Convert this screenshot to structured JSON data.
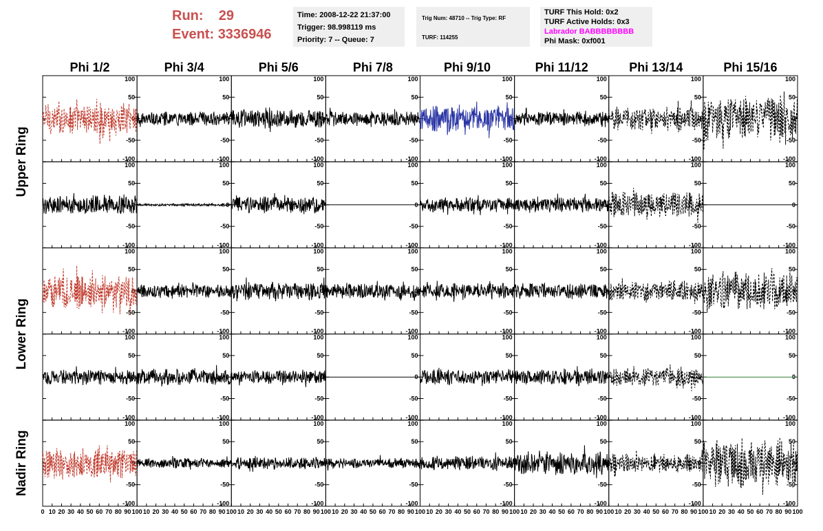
{
  "header": {
    "run_label": "Run:",
    "run_value": "29",
    "event_label": "Event:",
    "event_value": "3336946",
    "time": "Time: 2008-12-22 21:37:00",
    "trigger": "Trigger: 98.998119 ms",
    "priority_queue": "Priority: 7 -- Queue: 7",
    "trig_num_type": "Trig Num: 48710 -- Trig Type: RF",
    "turf_num": "TURF: 114255",
    "turf_this_hold": "TURF This Hold: 0x2",
    "turf_active_holds": "TURF Active Holds: 0x3",
    "labrador": "Labrador BABBBBBBBB",
    "phi_mask": "Phi Mask: 0xf001"
  },
  "colors": {
    "title_red": "#c8504f",
    "labrador_magenta": "#ff00ff",
    "trace_red": "#c0392b",
    "trace_blue": "#2a35a5",
    "trace_green": "#2e7d32",
    "trace_black": "#000000",
    "info_bg": "#efefef"
  },
  "chart_data": {
    "type": "line",
    "columns": [
      "Phi 1/2",
      "Phi 3/4",
      "Phi 5/6",
      "Phi 7/8",
      "Phi 9/10",
      "Phi 11/12",
      "Phi 13/14",
      "Phi 15/16"
    ],
    "ring_labels": [
      "Upper Ring",
      "Lower Ring",
      "Nadir Ring"
    ],
    "rows": 5,
    "row_ring": [
      0,
      0,
      1,
      1,
      2
    ],
    "xlim": [
      0,
      100
    ],
    "ylim": [
      -100,
      100
    ],
    "x_ticks": [
      0,
      10,
      20,
      30,
      40,
      50,
      60,
      70,
      80,
      90,
      100
    ],
    "y_ticks": [
      100,
      50,
      0,
      -50,
      -100
    ],
    "x_tick_labels": [
      "0",
      "10",
      "20",
      "30",
      "40",
      "50",
      "60",
      "70",
      "80",
      "90",
      "100"
    ],
    "y_tick_labels": [
      "100",
      "50",
      "0",
      "-50",
      "-100"
    ],
    "traces": [
      [
        {
          "color": "red",
          "style": "dashed",
          "amplitude": 38
        },
        {
          "color": "black",
          "style": "solid",
          "amplitude": 16
        },
        {
          "color": "black",
          "style": "solid",
          "amplitude": 24
        },
        {
          "color": "black",
          "style": "solid",
          "amplitude": 18
        },
        {
          "color": "blue",
          "style": "solid",
          "amplitude": 32
        },
        {
          "color": "black",
          "style": "solid",
          "amplitude": 16
        },
        {
          "color": "black",
          "style": "dashed",
          "amplitude": 28
        },
        {
          "color": "black",
          "style": "dashed",
          "amplitude": 55
        }
      ],
      [
        {
          "color": "black",
          "style": "solid",
          "amplitude": 22
        },
        {
          "color": "black",
          "style": "solid",
          "amplitude": 3
        },
        {
          "color": "black",
          "style": "solid",
          "amplitude": 20
        },
        {
          "color": "black",
          "style": "solid",
          "amplitude": 0
        },
        {
          "color": "black",
          "style": "solid",
          "amplitude": 18
        },
        {
          "color": "black",
          "style": "solid",
          "amplitude": 18
        },
        {
          "color": "black",
          "style": "dashed",
          "amplitude": 32
        },
        {
          "color": "black",
          "style": "solid",
          "amplitude": 0
        }
      ],
      [
        {
          "color": "red",
          "style": "dashed",
          "amplitude": 40
        },
        {
          "color": "black",
          "style": "solid",
          "amplitude": 16
        },
        {
          "color": "black",
          "style": "solid",
          "amplitude": 22
        },
        {
          "color": "black",
          "style": "solid",
          "amplitude": 18
        },
        {
          "color": "black",
          "style": "solid",
          "amplitude": 18
        },
        {
          "color": "black",
          "style": "solid",
          "amplitude": 18
        },
        {
          "color": "black",
          "style": "dashed",
          "amplitude": 24
        },
        {
          "color": "black",
          "style": "dashed",
          "amplitude": 48
        }
      ],
      [
        {
          "color": "black",
          "style": "solid",
          "amplitude": 18
        },
        {
          "color": "black",
          "style": "solid",
          "amplitude": 20
        },
        {
          "color": "black",
          "style": "solid",
          "amplitude": 16
        },
        {
          "color": "black",
          "style": "solid",
          "amplitude": 0
        },
        {
          "color": "black",
          "style": "solid",
          "amplitude": 18
        },
        {
          "color": "black",
          "style": "solid",
          "amplitude": 18
        },
        {
          "color": "black",
          "style": "dashed",
          "amplitude": 22
        },
        {
          "color": "green",
          "style": "solid",
          "amplitude": 0
        }
      ],
      [
        {
          "color": "red",
          "style": "dashed",
          "amplitude": 36
        },
        {
          "color": "black",
          "style": "solid",
          "amplitude": 12
        },
        {
          "color": "black",
          "style": "solid",
          "amplitude": 14
        },
        {
          "color": "black",
          "style": "solid",
          "amplitude": 12
        },
        {
          "color": "black",
          "style": "solid",
          "amplitude": 16
        },
        {
          "color": "black",
          "style": "solid",
          "amplitude": 28
        },
        {
          "color": "black",
          "style": "dashed",
          "amplitude": 22
        },
        {
          "color": "black",
          "style": "dashed",
          "amplitude": 58
        }
      ]
    ]
  }
}
